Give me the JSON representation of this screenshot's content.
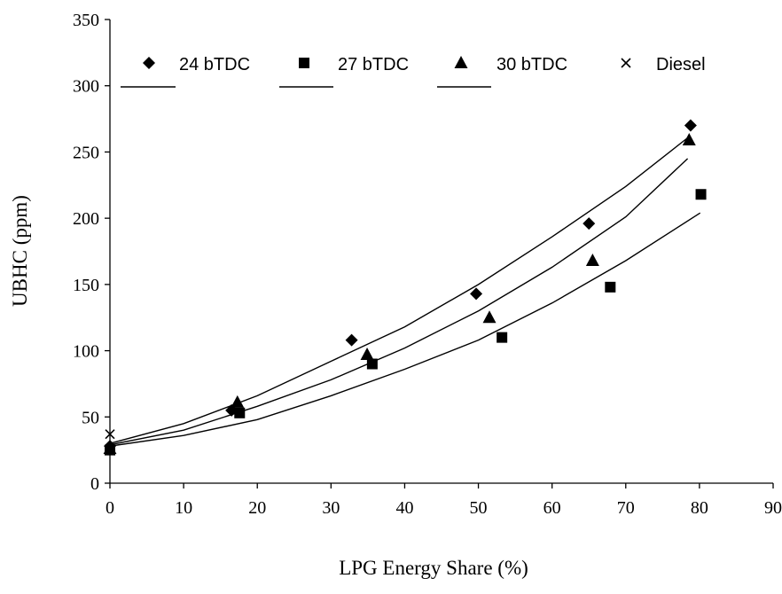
{
  "chart_data": {
    "type": "scatter",
    "xlabel": "LPG Energy Share (%)",
    "ylabel": "UBHC (ppm)",
    "xlim": [
      0,
      90
    ],
    "ylim": [
      0,
      350
    ],
    "x_ticks": [
      0,
      10,
      20,
      30,
      40,
      50,
      60,
      70,
      80,
      90
    ],
    "y_ticks": [
      0,
      50,
      100,
      150,
      200,
      250,
      300,
      350
    ],
    "grid": false,
    "legend_position": "top",
    "series": [
      {
        "name": "24 bTDC",
        "marker": "diamond",
        "points": [
          [
            0,
            28
          ],
          [
            16.5,
            55
          ],
          [
            32.8,
            108
          ],
          [
            49.7,
            143
          ],
          [
            65,
            196
          ],
          [
            78.8,
            270
          ]
        ],
        "trend": [
          [
            0,
            30
          ],
          [
            10,
            45
          ],
          [
            20,
            66
          ],
          [
            30,
            92
          ],
          [
            40,
            118
          ],
          [
            50,
            150
          ],
          [
            60,
            186
          ],
          [
            70,
            224
          ],
          [
            78.7,
            262
          ]
        ]
      },
      {
        "name": "27 bTDC",
        "marker": "square",
        "points": [
          [
            0,
            25
          ],
          [
            17.6,
            53
          ],
          [
            35.6,
            90
          ],
          [
            53.2,
            110
          ],
          [
            67.9,
            148
          ],
          [
            80.2,
            218
          ]
        ],
        "trend": [
          [
            0,
            28
          ],
          [
            10,
            36
          ],
          [
            20,
            48
          ],
          [
            30,
            66
          ],
          [
            40,
            86
          ],
          [
            50,
            108
          ],
          [
            60,
            136
          ],
          [
            70,
            168
          ],
          [
            80.1,
            204
          ]
        ]
      },
      {
        "name": "30 bTDC",
        "marker": "triangle",
        "points": [
          [
            0,
            26
          ],
          [
            17.3,
            61
          ],
          [
            34.9,
            97
          ],
          [
            51.5,
            125
          ],
          [
            65.5,
            168
          ],
          [
            78.6,
            259
          ]
        ],
        "trend": [
          [
            0,
            29
          ],
          [
            10,
            40
          ],
          [
            20,
            58
          ],
          [
            30,
            78
          ],
          [
            40,
            102
          ],
          [
            50,
            130
          ],
          [
            60,
            163
          ],
          [
            70,
            201
          ],
          [
            78.4,
            245
          ]
        ]
      },
      {
        "name": "Diesel",
        "marker": "x",
        "points": [
          [
            0,
            37
          ]
        ]
      }
    ]
  }
}
